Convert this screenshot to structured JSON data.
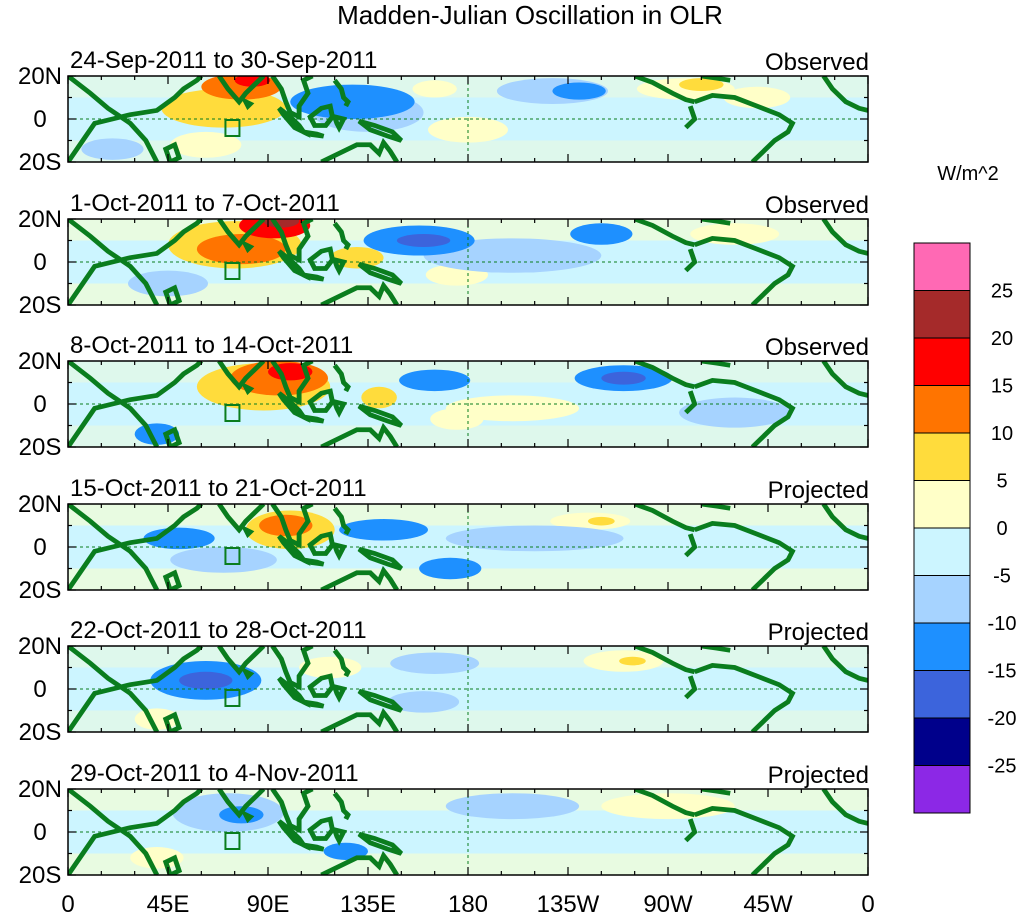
{
  "title": "Madden-Julian Oscillation in OLR",
  "colorbar": {
    "unit_label": "W/m^2",
    "tick_labels": [
      "25",
      "20",
      "15",
      "10",
      "5",
      "0",
      "-5",
      "-10",
      "-15",
      "-20",
      "-25"
    ],
    "colors": [
      "#ff69b4",
      "#a52a2a",
      "#ff0000",
      "#ff7400",
      "#ffdc3c",
      "#ffffc8",
      "#ccf5ff",
      "#a6d3ff",
      "#1e90ff",
      "#3c64dc",
      "#00008b",
      "#8c28e6"
    ]
  },
  "axes": {
    "lon_labels": [
      "0",
      "45E",
      "90E",
      "135E",
      "180",
      "135W",
      "90W",
      "45W",
      "0"
    ],
    "lat_labels": [
      "20N",
      "0",
      "20S"
    ]
  },
  "panels": [
    {
      "date_range": "24-Sep-2011 to 30-Sep-2011",
      "kind": "Observed"
    },
    {
      "date_range": "1-Oct-2011 to 7-Oct-2011",
      "kind": "Observed"
    },
    {
      "date_range": "8-Oct-2011 to 14-Oct-2011",
      "kind": "Observed"
    },
    {
      "date_range": "15-Oct-2011 to 21-Oct-2011",
      "kind": "Projected"
    },
    {
      "date_range": "22-Oct-2011 to 28-Oct-2011",
      "kind": "Projected"
    },
    {
      "date_range": "29-Oct-2011 to 4-Nov-2011",
      "kind": "Projected"
    }
  ],
  "map_data": {
    "lon_range": [
      0,
      360
    ],
    "lat_range": [
      -20,
      20
    ],
    "anomaly_blobs": [
      [
        {
          "lon": 70,
          "lat": 5,
          "rx": 28,
          "ry": 9,
          "v": 10
        },
        {
          "lon": 78,
          "lat": 15,
          "rx": 18,
          "ry": 6,
          "v": 15
        },
        {
          "lon": 83,
          "lat": 18,
          "rx": 8,
          "ry": 3,
          "v": 20
        },
        {
          "lon": 62,
          "lat": -12,
          "rx": 16,
          "ry": 6,
          "v": 5
        },
        {
          "lon": 128,
          "lat": 8,
          "rx": 28,
          "ry": 8,
          "v": -10
        },
        {
          "lon": 135,
          "lat": 3,
          "rx": 25,
          "ry": 9,
          "v": -5
        },
        {
          "lon": 165,
          "lat": 14,
          "rx": 10,
          "ry": 4,
          "v": 5
        },
        {
          "lon": 218,
          "lat": 13,
          "rx": 25,
          "ry": 6,
          "v": -5
        },
        {
          "lon": 230,
          "lat": 13,
          "rx": 12,
          "ry": 4,
          "v": -10
        },
        {
          "lon": 278,
          "lat": 14,
          "rx": 22,
          "ry": 5,
          "v": 5
        },
        {
          "lon": 285,
          "lat": 16,
          "rx": 10,
          "ry": 3,
          "v": 10
        },
        {
          "lon": 20,
          "lat": -14,
          "rx": 14,
          "ry": 5,
          "v": -5
        },
        {
          "lon": 180,
          "lat": -5,
          "rx": 18,
          "ry": 6,
          "v": 5
        },
        {
          "lon": 310,
          "lat": 10,
          "rx": 15,
          "ry": 5,
          "v": 5
        }
      ],
      [
        {
          "lon": 75,
          "lat": 8,
          "rx": 30,
          "ry": 11,
          "v": 10
        },
        {
          "lon": 78,
          "lat": 6,
          "rx": 20,
          "ry": 7,
          "v": 15
        },
        {
          "lon": 93,
          "lat": 17,
          "rx": 16,
          "ry": 6,
          "v": 20
        },
        {
          "lon": 96,
          "lat": 19,
          "rx": 8,
          "ry": 3,
          "v": 25
        },
        {
          "lon": 158,
          "lat": 10,
          "rx": 25,
          "ry": 7,
          "v": -10
        },
        {
          "lon": 160,
          "lat": 10,
          "rx": 12,
          "ry": 3,
          "v": -15
        },
        {
          "lon": 240,
          "lat": 13,
          "rx": 14,
          "ry": 5,
          "v": -10
        },
        {
          "lon": 175,
          "lat": -6,
          "rx": 14,
          "ry": 5,
          "v": 5
        },
        {
          "lon": 130,
          "lat": 2,
          "rx": 12,
          "ry": 5,
          "v": 10
        },
        {
          "lon": 45,
          "lat": -10,
          "rx": 18,
          "ry": 6,
          "v": -5
        },
        {
          "lon": 300,
          "lat": 13,
          "rx": 20,
          "ry": 5,
          "v": 5
        },
        {
          "lon": 200,
          "lat": 3,
          "rx": 40,
          "ry": 8,
          "v": -5
        }
      ],
      [
        {
          "lon": 88,
          "lat": 8,
          "rx": 30,
          "ry": 11,
          "v": 10
        },
        {
          "lon": 95,
          "lat": 12,
          "rx": 22,
          "ry": 8,
          "v": 15
        },
        {
          "lon": 100,
          "lat": 15,
          "rx": 10,
          "ry": 4,
          "v": 20
        },
        {
          "lon": 140,
          "lat": 3,
          "rx": 8,
          "ry": 5,
          "v": 10
        },
        {
          "lon": 165,
          "lat": 11,
          "rx": 16,
          "ry": 5,
          "v": -10
        },
        {
          "lon": 250,
          "lat": 12,
          "rx": 22,
          "ry": 6,
          "v": -10
        },
        {
          "lon": 250,
          "lat": 12,
          "rx": 10,
          "ry": 3,
          "v": -15
        },
        {
          "lon": 40,
          "lat": -14,
          "rx": 10,
          "ry": 5,
          "v": -10
        },
        {
          "lon": 175,
          "lat": -7,
          "rx": 12,
          "ry": 5,
          "v": 5
        },
        {
          "lon": 300,
          "lat": -4,
          "rx": 25,
          "ry": 7,
          "v": -5
        },
        {
          "lon": 200,
          "lat": -2,
          "rx": 30,
          "ry": 6,
          "v": 5
        }
      ],
      [
        {
          "lon": 100,
          "lat": 8,
          "rx": 20,
          "ry": 9,
          "v": 10
        },
        {
          "lon": 98,
          "lat": 10,
          "rx": 12,
          "ry": 5,
          "v": 15
        },
        {
          "lon": 50,
          "lat": 4,
          "rx": 16,
          "ry": 5,
          "v": -10
        },
        {
          "lon": 142,
          "lat": 8,
          "rx": 20,
          "ry": 5,
          "v": -10
        },
        {
          "lon": 235,
          "lat": 12,
          "rx": 18,
          "ry": 4,
          "v": 5
        },
        {
          "lon": 240,
          "lat": 12,
          "rx": 6,
          "ry": 2,
          "v": 10
        },
        {
          "lon": 172,
          "lat": -10,
          "rx": 14,
          "ry": 5,
          "v": -10
        },
        {
          "lon": 70,
          "lat": -6,
          "rx": 24,
          "ry": 6,
          "v": -5
        },
        {
          "lon": 210,
          "lat": 4,
          "rx": 40,
          "ry": 6,
          "v": -5
        }
      ],
      [
        {
          "lon": 62,
          "lat": 4,
          "rx": 25,
          "ry": 9,
          "v": -10
        },
        {
          "lon": 62,
          "lat": 4,
          "rx": 12,
          "ry": 4,
          "v": -15
        },
        {
          "lon": 118,
          "lat": 10,
          "rx": 14,
          "ry": 5,
          "v": 5
        },
        {
          "lon": 250,
          "lat": 13,
          "rx": 18,
          "ry": 5,
          "v": 5
        },
        {
          "lon": 254,
          "lat": 13,
          "rx": 6,
          "ry": 2,
          "v": 10
        },
        {
          "lon": 40,
          "lat": -14,
          "rx": 10,
          "ry": 5,
          "v": 5
        },
        {
          "lon": 165,
          "lat": 12,
          "rx": 20,
          "ry": 5,
          "v": -5
        },
        {
          "lon": 160,
          "lat": -6,
          "rx": 16,
          "ry": 5,
          "v": -5
        }
      ],
      [
        {
          "lon": 72,
          "lat": 9,
          "rx": 25,
          "ry": 9,
          "v": -5
        },
        {
          "lon": 78,
          "lat": 8,
          "rx": 10,
          "ry": 4,
          "v": -10
        },
        {
          "lon": 125,
          "lat": -9,
          "rx": 10,
          "ry": 4,
          "v": -10
        },
        {
          "lon": 270,
          "lat": 12,
          "rx": 30,
          "ry": 6,
          "v": 5
        },
        {
          "lon": 200,
          "lat": 12,
          "rx": 30,
          "ry": 6,
          "v": -5
        },
        {
          "lon": 40,
          "lat": -12,
          "rx": 12,
          "ry": 5,
          "v": 5
        }
      ]
    ]
  }
}
